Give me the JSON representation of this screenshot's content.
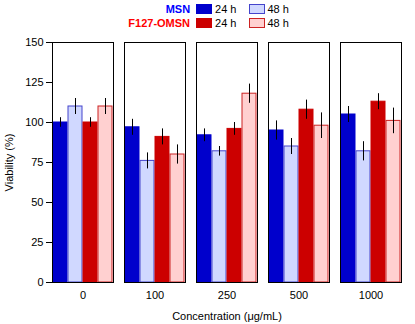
{
  "chart_data": {
    "type": "bar",
    "categories": [
      "0",
      "100",
      "250",
      "500",
      "1000"
    ],
    "xlabel": "Concentration (μg/mL)",
    "ylabel": "Viability (%)",
    "ylim": [
      0,
      150
    ],
    "yticks": [
      0,
      25,
      50,
      75,
      100,
      125,
      150
    ],
    "grid": false,
    "groups": [
      {
        "name": "MSN",
        "color": "blue"
      },
      {
        "name": "F127-OMSN",
        "color": "red"
      }
    ],
    "series": [
      {
        "name": "24 h",
        "group": "MSN",
        "color": "#0000CC",
        "edge_color": "#0000CC",
        "values": [
          100,
          97,
          92,
          95,
          105
        ],
        "errors": [
          3,
          5,
          4,
          6,
          5
        ]
      },
      {
        "name": "48 h",
        "group": "MSN",
        "color": "#D0D8FF",
        "edge_color": "#4444CC",
        "values": [
          110,
          76,
          82,
          85,
          82
        ],
        "errors": [
          5,
          5,
          3,
          5,
          6
        ]
      },
      {
        "name": "24 h",
        "group": "F127-OMSN",
        "color": "#CC0000",
        "edge_color": "#CC0000",
        "values": [
          100,
          91,
          96,
          108,
          113
        ],
        "errors": [
          3,
          5,
          4,
          6,
          5
        ]
      },
      {
        "name": "48 h",
        "group": "F127-OMSN",
        "color": "#FFD0D0",
        "edge_color": "#CC2222",
        "values": [
          110,
          80,
          118,
          98,
          101
        ],
        "errors": [
          5,
          6,
          6,
          8,
          8
        ]
      }
    ]
  }
}
